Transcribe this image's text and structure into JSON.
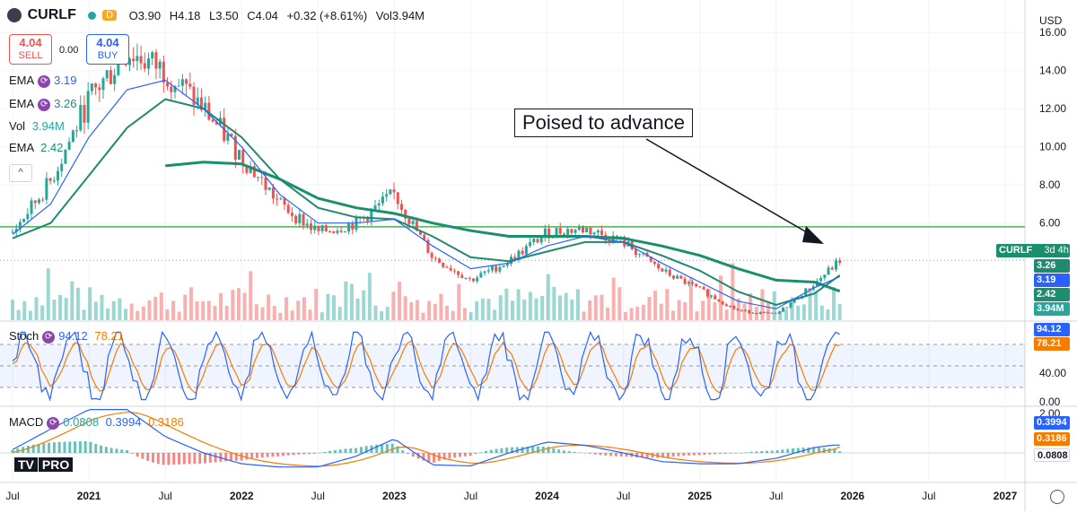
{
  "header": {
    "symbol": "CURLF",
    "badge": "D",
    "open": "O3.90",
    "high": "H4.18",
    "low": "L3.50",
    "close": "C4.04",
    "change": "+0.32 (+8.61%)",
    "volume": "Vol3.94M"
  },
  "trade": {
    "sell_price": "4.04",
    "sell_label": "SELL",
    "spread": "0.00",
    "buy_price": "4.04",
    "buy_label": "BUY"
  },
  "legend": {
    "ema1_label": "EMA",
    "ema1_value": "3.19",
    "ema2_label": "EMA",
    "ema2_value": "3.26",
    "vol_label": "Vol",
    "vol_value": "3.94M",
    "ema3_label": "EMA",
    "ema3_value": "2.42",
    "stoch_label": "Stoch",
    "stoch_k": "94.12",
    "stoch_d": "78.21",
    "macd_label": "MACD",
    "macd_v1": "0.0808",
    "macd_v2": "0.3994",
    "macd_v3": "0.3186"
  },
  "annotation": {
    "text": "Poised to advance"
  },
  "currency": "USD",
  "price_axis_ticks": [
    "16.00",
    "14.00",
    "12.00",
    "10.00",
    "8.00",
    "6.00"
  ],
  "stoch_axis_ticks": [
    "40.00",
    "0.00"
  ],
  "macd_axis_ticks": [
    "2.00"
  ],
  "tags": {
    "symbol": "CURLF",
    "interval": "3d 4h",
    "ema2": "3.26",
    "ema1": "3.19",
    "ema3": "2.42",
    "vol": "3.94M",
    "stoch_k": "94.12",
    "stoch_d": "78.21",
    "macd_v2": "0.3994",
    "macd_v3": "0.3186",
    "macd_v1": "0.0808"
  },
  "time_axis": [
    "Jul",
    "2021",
    "Jul",
    "2022",
    "Jul",
    "2023",
    "Jul",
    "2024",
    "Jul",
    "2025",
    "Jul",
    "2026",
    "Jul",
    "2027"
  ],
  "logo": "PRO",
  "colors": {
    "up": "#26a69a",
    "down": "#ef5350",
    "ema_fast": "#2962ff",
    "ema_mid": "#1f8a70",
    "ema_slow": "#1a8f6d",
    "horizontal": "#4caf50",
    "stoch_k": "#2962ff",
    "stoch_d": "#f57c00",
    "macd": "#2962ff",
    "signal": "#f57c00"
  },
  "chart_data": {
    "type": "line",
    "title": "CURLF",
    "xlabel": "",
    "ylabel": "",
    "ylim": [
      0,
      17
    ],
    "horizontal_line": 5.8,
    "x": [
      "2020-07",
      "2020-10",
      "2021-01",
      "2021-04",
      "2021-07",
      "2021-10",
      "2022-01",
      "2022-04",
      "2022-07",
      "2022-10",
      "2023-01",
      "2023-04",
      "2023-07",
      "2023-10",
      "2024-01",
      "2024-04",
      "2024-07",
      "2024-10",
      "2025-01",
      "2025-04",
      "2025-07",
      "2025-10",
      "2025-12"
    ],
    "series": [
      {
        "name": "Close",
        "values": [
          5.5,
          8.2,
          12.5,
          15.0,
          14.0,
          12.0,
          9.5,
          7.0,
          5.5,
          6.0,
          7.5,
          4.2,
          3.0,
          4.0,
          5.5,
          5.7,
          5.0,
          3.5,
          2.5,
          1.4,
          1.2,
          2.8,
          4.04
        ]
      },
      {
        "name": "EMA",
        "values": [
          5.4,
          7.0,
          10.5,
          13.0,
          13.5,
          12.0,
          10.0,
          7.5,
          6.0,
          6.0,
          6.2,
          4.8,
          3.6,
          3.9,
          4.8,
          5.3,
          5.0,
          3.9,
          2.9,
          1.9,
          1.5,
          2.6,
          3.19
        ]
      },
      {
        "name": "EMA",
        "values": [
          5.2,
          6.0,
          8.5,
          11.0,
          12.5,
          12.0,
          10.5,
          8.3,
          6.8,
          6.3,
          6.2,
          5.3,
          4.2,
          4.0,
          4.5,
          5.0,
          5.0,
          4.3,
          3.5,
          2.4,
          1.7,
          2.3,
          3.26
        ]
      },
      {
        "name": "EMA",
        "values": [
          null,
          null,
          null,
          null,
          9.0,
          9.2,
          9.1,
          8.3,
          7.3,
          6.8,
          6.5,
          6.0,
          5.6,
          5.3,
          5.3,
          5.3,
          5.2,
          4.8,
          4.3,
          3.6,
          3.0,
          2.9,
          2.42
        ]
      }
    ],
    "volume_last": "3.94M",
    "stochastic": {
      "k_last": 94.12,
      "d_last": 78.21,
      "levels": [
        80,
        50,
        20
      ]
    },
    "macd": {
      "macd_last": 0.3994,
      "signal_last": 0.3186,
      "hist_last": 0.0808
    }
  }
}
